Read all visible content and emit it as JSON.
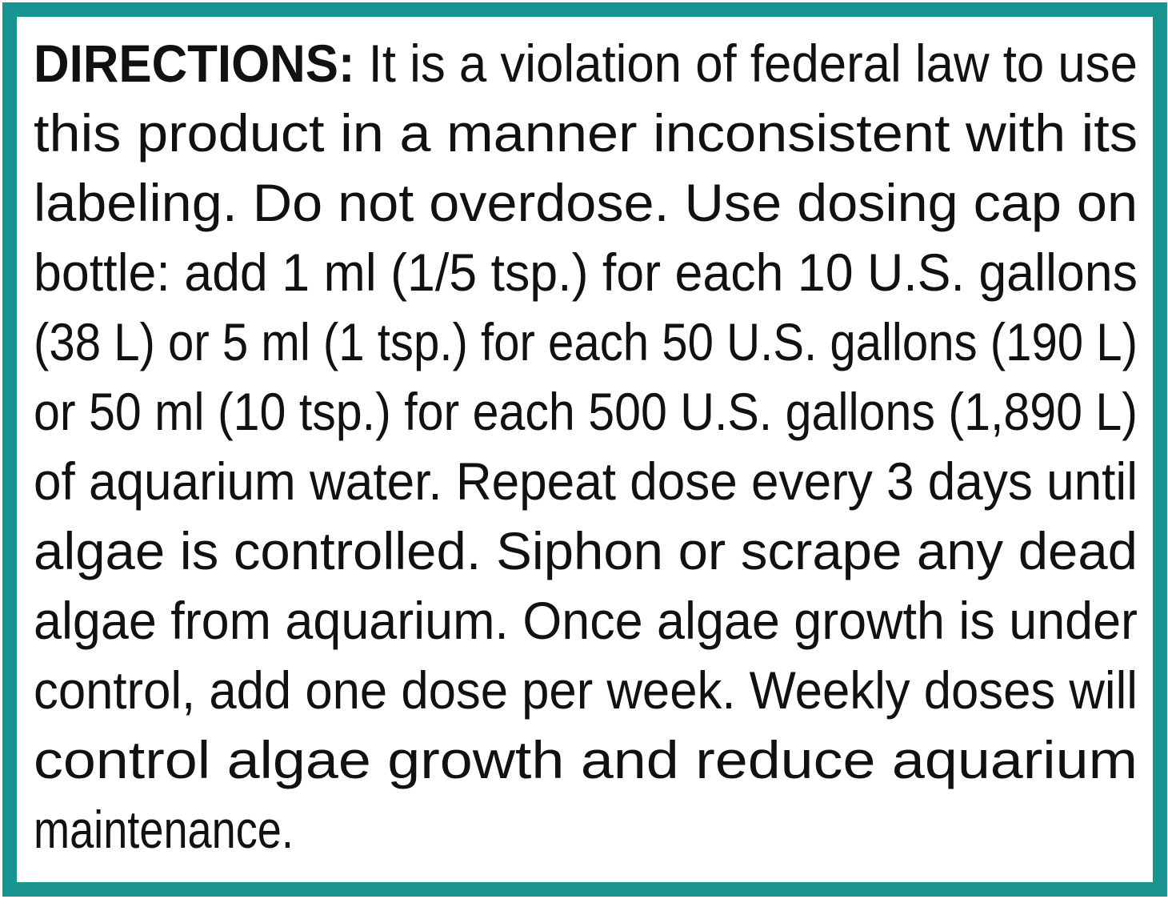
{
  "colors": {
    "border": "#1a9490",
    "text": "#111111"
  },
  "directions": {
    "label": "DIRECTIONS:",
    "first_line_rest": " It is a violation of federal law to use",
    "lines": [
      "this product in a manner inconsistent with its",
      "labeling. Do not overdose. Use dosing cap on",
      "bottle: add 1 ml (1/5 tsp.) for each 10 U.S. gallons",
      "(38 L) or 5 ml (1 tsp.) for each 50 U.S. gallons (190 L)",
      "or 50 ml (10 tsp.) for each 500 U.S. gallons (1,890 L)",
      "of aquarium water. Repeat dose every 3 days until",
      "algae is controlled. Siphon or scrape any dead",
      "algae from aquarium. Once algae growth is under",
      "control, add one dose per week. Weekly doses will",
      "control algae growth and reduce aquarium",
      "maintenance."
    ]
  }
}
